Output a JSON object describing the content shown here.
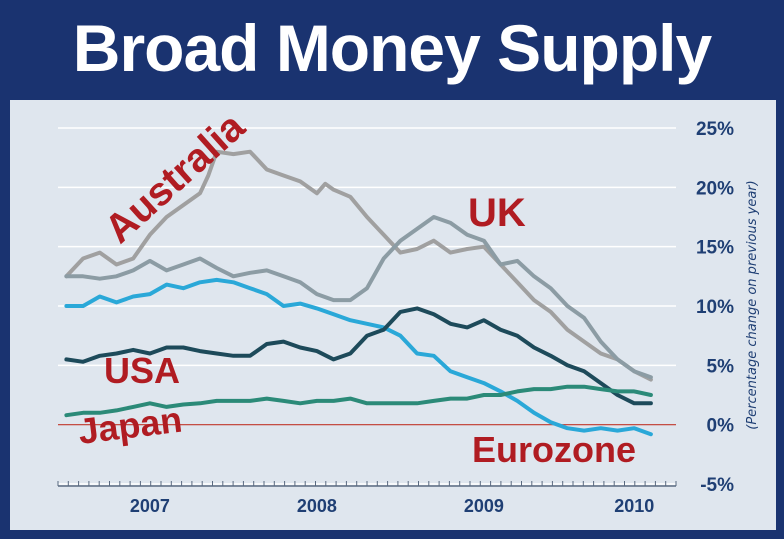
{
  "title": "Broad Money Supply",
  "chart_data": {
    "type": "line",
    "title": "Broad Money Supply",
    "ylabel": "(Percentage change on previous year)",
    "xlabel": "",
    "ylim": [
      -5,
      25
    ],
    "yticks": [
      "25%",
      "20%",
      "15%",
      "10%",
      "5%",
      "0%",
      "-5%"
    ],
    "ytick_values": [
      25,
      20,
      15,
      10,
      5,
      0,
      -5
    ],
    "xticks": [
      "2007",
      "2008",
      "2009",
      "2010"
    ],
    "xtick_values": [
      2007.0,
      2008.0,
      2009.0,
      2009.9
    ],
    "xlim": [
      2006.45,
      2010.15
    ],
    "grid": true,
    "series": [
      {
        "name": "Australia",
        "color": "#a0a0a0",
        "x": [
          2006.5,
          2006.6,
          2006.7,
          2006.8,
          2006.9,
          2007.0,
          2007.1,
          2007.2,
          2007.3,
          2007.35,
          2007.4,
          2007.5,
          2007.6,
          2007.7,
          2007.8,
          2007.9,
          2008.0,
          2008.05,
          2008.1,
          2008.2,
          2008.3,
          2008.4,
          2008.5,
          2008.6,
          2008.7,
          2008.8,
          2008.9,
          2009.0,
          2009.1,
          2009.2,
          2009.3,
          2009.4,
          2009.5,
          2009.6,
          2009.7,
          2009.8,
          2009.9,
          2010.0
        ],
        "values": [
          12.5,
          14.0,
          14.5,
          13.5,
          14.0,
          16.0,
          17.5,
          18.5,
          19.5,
          21.0,
          23.0,
          22.8,
          23.0,
          21.5,
          21.0,
          20.5,
          19.5,
          20.3,
          19.8,
          19.2,
          17.5,
          16.0,
          14.5,
          14.8,
          15.5,
          14.5,
          14.8,
          15.0,
          13.5,
          12.0,
          10.5,
          9.5,
          8.0,
          7.0,
          6.0,
          5.5,
          4.5,
          3.8
        ]
      },
      {
        "name": "UK",
        "color": "#8c9ca4",
        "x": [
          2006.5,
          2006.6,
          2006.7,
          2006.8,
          2006.9,
          2007.0,
          2007.1,
          2007.2,
          2007.3,
          2007.4,
          2007.5,
          2007.6,
          2007.7,
          2007.8,
          2007.9,
          2008.0,
          2008.1,
          2008.2,
          2008.3,
          2008.4,
          2008.5,
          2008.6,
          2008.7,
          2008.8,
          2008.9,
          2009.0,
          2009.1,
          2009.2,
          2009.3,
          2009.4,
          2009.5,
          2009.6,
          2009.7,
          2009.8,
          2009.9,
          2010.0
        ],
        "values": [
          12.5,
          12.5,
          12.3,
          12.5,
          13.0,
          13.8,
          13.0,
          13.5,
          14.0,
          13.2,
          12.5,
          12.8,
          13.0,
          12.5,
          12.0,
          11.0,
          10.5,
          10.5,
          11.5,
          14.0,
          15.5,
          16.5,
          17.5,
          17.0,
          16.0,
          15.5,
          13.5,
          13.8,
          12.5,
          11.5,
          10.0,
          9.0,
          7.0,
          5.5,
          4.5,
          4.0
        ]
      },
      {
        "name": "Eurozone",
        "color": "#2aa8d8",
        "x": [
          2006.5,
          2006.6,
          2006.7,
          2006.8,
          2006.9,
          2007.0,
          2007.1,
          2007.2,
          2007.3,
          2007.4,
          2007.5,
          2007.6,
          2007.7,
          2007.8,
          2007.9,
          2008.0,
          2008.1,
          2008.2,
          2008.3,
          2008.4,
          2008.5,
          2008.6,
          2008.7,
          2008.8,
          2008.9,
          2009.0,
          2009.1,
          2009.2,
          2009.3,
          2009.4,
          2009.5,
          2009.6,
          2009.7,
          2009.8,
          2009.9,
          2010.0
        ],
        "values": [
          10.0,
          10.0,
          10.8,
          10.3,
          10.8,
          11.0,
          11.8,
          11.5,
          12.0,
          12.2,
          12.0,
          11.5,
          11.0,
          10.0,
          10.2,
          9.8,
          9.3,
          8.8,
          8.5,
          8.2,
          7.5,
          6.0,
          5.8,
          4.5,
          4.0,
          3.5,
          2.8,
          2.0,
          1.0,
          0.2,
          -0.3,
          -0.5,
          -0.3,
          -0.5,
          -0.3,
          -0.8
        ]
      },
      {
        "name": "USA",
        "color": "#1d4a5a",
        "x": [
          2006.5,
          2006.6,
          2006.7,
          2006.8,
          2006.9,
          2007.0,
          2007.1,
          2007.2,
          2007.3,
          2007.4,
          2007.5,
          2007.6,
          2007.7,
          2007.8,
          2007.9,
          2008.0,
          2008.1,
          2008.2,
          2008.3,
          2008.4,
          2008.5,
          2008.6,
          2008.7,
          2008.8,
          2008.9,
          2009.0,
          2009.1,
          2009.2,
          2009.3,
          2009.4,
          2009.5,
          2009.6,
          2009.7,
          2009.8,
          2009.9,
          2010.0
        ],
        "values": [
          5.5,
          5.3,
          5.8,
          6.0,
          6.3,
          6.0,
          6.5,
          6.5,
          6.2,
          6.0,
          5.8,
          5.8,
          6.8,
          7.0,
          6.5,
          6.2,
          5.5,
          6.0,
          7.5,
          8.0,
          9.5,
          9.8,
          9.3,
          8.5,
          8.2,
          8.8,
          8.0,
          7.5,
          6.5,
          5.8,
          5.0,
          4.5,
          3.5,
          2.5,
          1.8,
          1.8
        ]
      },
      {
        "name": "Japan",
        "color": "#2b8a78",
        "x": [
          2006.5,
          2006.6,
          2006.7,
          2006.8,
          2006.9,
          2007.0,
          2007.1,
          2007.2,
          2007.3,
          2007.4,
          2007.5,
          2007.6,
          2007.7,
          2007.8,
          2007.9,
          2008.0,
          2008.1,
          2008.2,
          2008.3,
          2008.4,
          2008.5,
          2008.6,
          2008.7,
          2008.8,
          2008.9,
          2009.0,
          2009.1,
          2009.2,
          2009.3,
          2009.4,
          2009.5,
          2009.6,
          2009.7,
          2009.8,
          2009.9,
          2010.0
        ],
        "values": [
          0.8,
          1.0,
          1.0,
          1.2,
          1.5,
          1.8,
          1.5,
          1.7,
          1.8,
          2.0,
          2.0,
          2.0,
          2.2,
          2.0,
          1.8,
          2.0,
          2.0,
          2.2,
          1.8,
          1.8,
          1.8,
          1.8,
          2.0,
          2.2,
          2.2,
          2.5,
          2.5,
          2.8,
          3.0,
          3.0,
          3.2,
          3.2,
          3.0,
          2.8,
          2.8,
          2.5
        ]
      }
    ],
    "annotations": [
      {
        "text": "Australia"
      },
      {
        "text": "UK"
      },
      {
        "text": "USA"
      },
      {
        "text": "Japan"
      },
      {
        "text": "Eurozone"
      }
    ]
  }
}
